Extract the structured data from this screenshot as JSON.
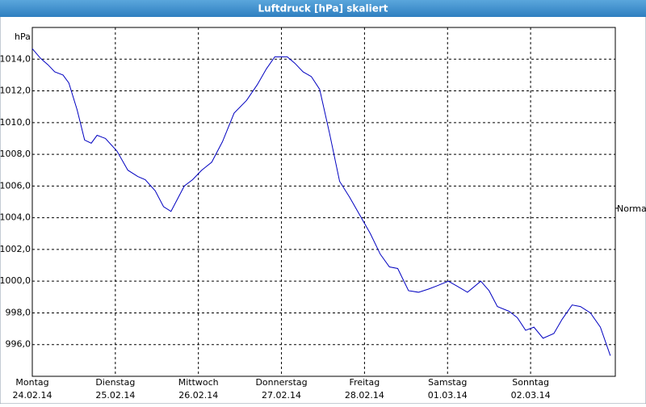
{
  "chart_data": {
    "type": "line",
    "title": "Luftdruck [hPa] skaliert",
    "y_label": "hPa",
    "xlim": [
      0,
      7.02
    ],
    "ylim": [
      994,
      1016
    ],
    "yticks": [
      {
        "value": 996,
        "label": "996,0"
      },
      {
        "value": 998,
        "label": "998,0"
      },
      {
        "value": 1000,
        "label": "1000,0"
      },
      {
        "value": 1002,
        "label": "1002,0"
      },
      {
        "value": 1004,
        "label": "1004,0"
      },
      {
        "value": 1006,
        "label": "1006,0"
      },
      {
        "value": 1008,
        "label": "1008,0"
      },
      {
        "value": 1010,
        "label": "1010,0"
      },
      {
        "value": 1012,
        "label": "1012,0"
      },
      {
        "value": 1014,
        "label": "1014,0"
      }
    ],
    "xticks": [
      {
        "value": 0,
        "label": "Montag"
      },
      {
        "value": 1,
        "label": "Dienstag"
      },
      {
        "value": 2,
        "label": "Mittwoch"
      },
      {
        "value": 3,
        "label": "Donnerstag"
      },
      {
        "value": 4,
        "label": "Freitag"
      },
      {
        "value": 5,
        "label": "Samstag"
      },
      {
        "value": 6,
        "label": "Sonntag"
      }
    ],
    "xtick_dates": [
      "24.02.14",
      "25.02.14",
      "26.02.14",
      "27.02.14",
      "28.02.14",
      "01.03.14",
      "02.03.14"
    ],
    "grid": true,
    "normal": {
      "label": "Normal",
      "value": 1004.6
    },
    "series": [
      {
        "name": "Luftdruck",
        "color": "#0000c0",
        "x": [
          0,
          0.1,
          0.19,
          0.27,
          0.37,
          0.44,
          0.54,
          0.63,
          0.71,
          0.78,
          0.88,
          1.02,
          1.15,
          1.27,
          1.36,
          1.48,
          1.58,
          1.67,
          1.73,
          1.83,
          1.93,
          2.04,
          2.16,
          2.29,
          2.43,
          2.58,
          2.71,
          2.82,
          2.92,
          3.07,
          3.16,
          3.26,
          3.36,
          3.46,
          3.58,
          3.7,
          3.82,
          3.94,
          4.07,
          4.19,
          4.3,
          4.4,
          4.53,
          4.65,
          4.77,
          4.87,
          5.01,
          5.11,
          5.24,
          5.4,
          5.5,
          5.6,
          5.74,
          5.84,
          5.94,
          6.04,
          6.15,
          6.28,
          6.38,
          6.5,
          6.6,
          6.72,
          6.84,
          6.96
        ],
        "values": [
          1014.66,
          1014.05,
          1013.64,
          1013.2,
          1013.0,
          1012.5,
          1010.8,
          1008.9,
          1008.7,
          1009.2,
          1009.0,
          1008.2,
          1007.0,
          1006.6,
          1006.4,
          1005.7,
          1004.7,
          1004.4,
          1005.0,
          1006.0,
          1006.4,
          1007.0,
          1007.5,
          1008.8,
          1010.6,
          1011.4,
          1012.4,
          1013.4,
          1014.15,
          1014.15,
          1013.75,
          1013.2,
          1012.9,
          1012.1,
          1009.3,
          1006.3,
          1005.3,
          1004.2,
          1003.0,
          1001.7,
          1000.9,
          1000.8,
          999.4,
          999.3,
          999.5,
          999.7,
          1000.0,
          999.7,
          999.3,
          1000.0,
          999.4,
          998.4,
          998.1,
          997.7,
          996.9,
          997.1,
          996.4,
          996.7,
          997.6,
          998.5,
          998.4,
          998.0,
          997.1,
          995.3
        ]
      }
    ]
  }
}
